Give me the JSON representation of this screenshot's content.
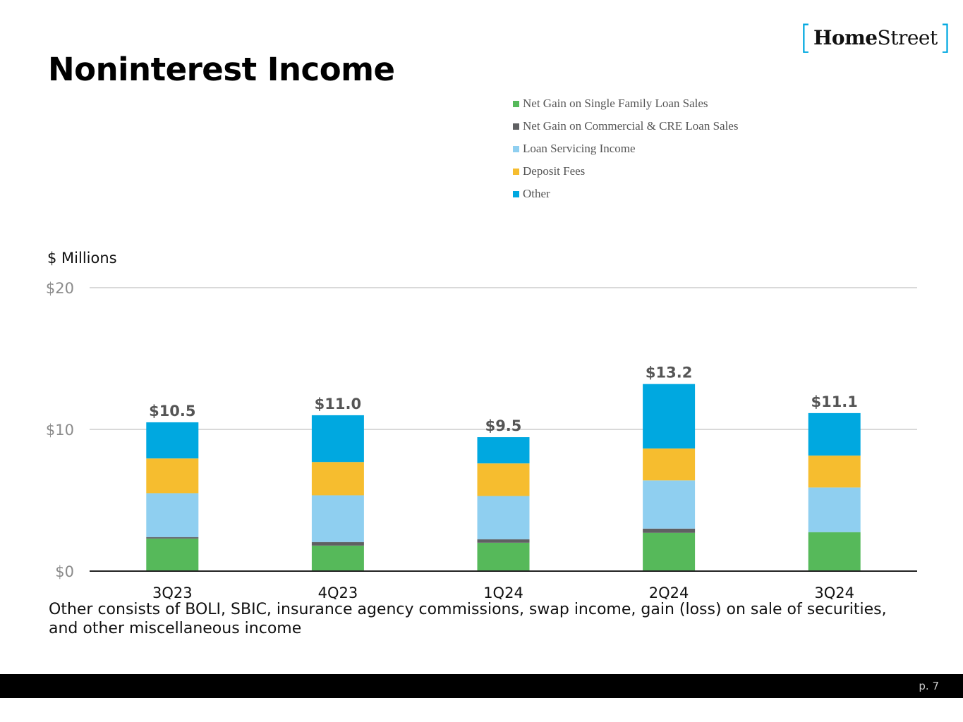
{
  "header": {
    "title": "Noninterest Income",
    "logo_bracket_open": "[",
    "logo_bold": "Home",
    "logo_regular": "Street",
    "logo_bracket_close": "]"
  },
  "unit_label": "$ Millions",
  "note": "Other consists of BOLI, SBIC, insurance agency commissions, swap income, gain (loss) on sale of securities, and other miscellaneous income",
  "footer": {
    "page": "p. 7"
  },
  "colors": {
    "single_family": "#56b95a",
    "commercial": "#5f6062",
    "servicing": "#8fcff0",
    "deposit": "#f6bd2f",
    "other": "#00a8e0",
    "brand": "#00a8e0"
  },
  "chart_data": {
    "type": "bar",
    "stacked": true,
    "title": "Noninterest Income",
    "ylabel": "$ Millions",
    "xlabel": "",
    "ylim": [
      0,
      20
    ],
    "yticks": [
      0,
      10,
      20
    ],
    "ytick_labels": [
      "$0",
      "$10",
      "$20"
    ],
    "categories": [
      "3Q23",
      "4Q23",
      "1Q24",
      "2Q24",
      "3Q24"
    ],
    "totals": [
      "$10.5",
      "$11.0",
      "$9.5",
      "$13.2",
      "$11.1"
    ],
    "legend_position": "top-right",
    "series": [
      {
        "name": "Net Gain on Single Family Loan Sales",
        "color": "#56b95a",
        "values": [
          2.3,
          1.8,
          2.0,
          2.7,
          2.75
        ]
      },
      {
        "name": "Net Gain on Commercial & CRE Loan Sales",
        "color": "#5f6062",
        "values": [
          0.1,
          0.25,
          0.25,
          0.3,
          0.0
        ]
      },
      {
        "name": "Loan Servicing Income",
        "color": "#8fcff0",
        "values": [
          3.1,
          3.3,
          3.05,
          3.4,
          3.15
        ]
      },
      {
        "name": "Deposit Fees",
        "color": "#f6bd2f",
        "values": [
          2.45,
          2.35,
          2.3,
          2.25,
          2.25
        ]
      },
      {
        "name": "Other",
        "color": "#00a8e0",
        "values": [
          2.55,
          3.3,
          1.85,
          4.55,
          3.0
        ]
      }
    ]
  }
}
